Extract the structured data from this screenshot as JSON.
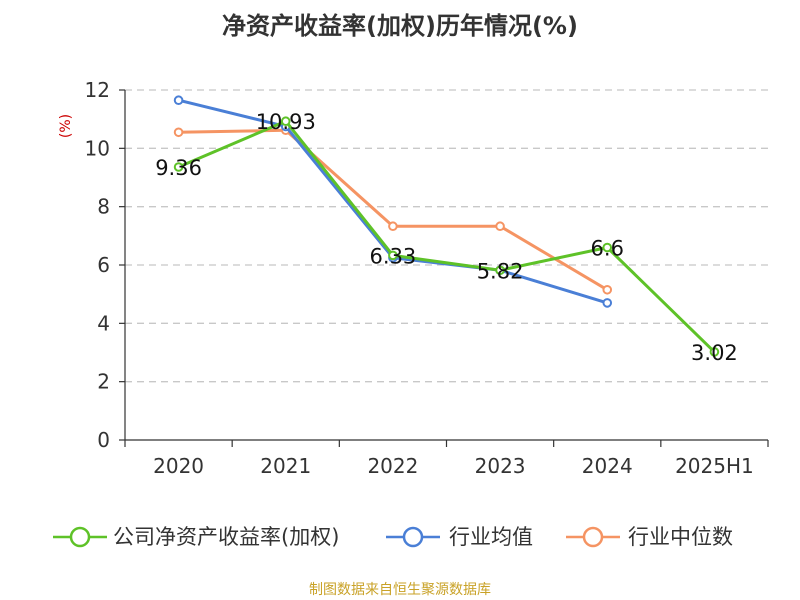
{
  "chart_data": {
    "type": "line",
    "title": "净资产收益率(加权)历年情况(%)",
    "ylabel": "(%)",
    "categories": [
      "2020",
      "2021",
      "2022",
      "2023",
      "2024",
      "2025H1"
    ],
    "ylim": [
      0,
      12
    ],
    "yticks": [
      0,
      2,
      4,
      6,
      8,
      10,
      12
    ],
    "grid": true,
    "legend_position": "bottom",
    "series": [
      {
        "name": "公司净资产收益率(加权)",
        "color": "#5ec228",
        "labeled": true,
        "values": [
          9.36,
          10.93,
          6.33,
          5.82,
          6.6,
          3.02
        ]
      },
      {
        "name": "行业均值",
        "color": "#4a7fd6",
        "labeled": false,
        "values": [
          11.65,
          10.75,
          6.25,
          5.82,
          4.7,
          null
        ]
      },
      {
        "name": "行业中位数",
        "color": "#f59463",
        "labeled": false,
        "values": [
          10.55,
          10.62,
          7.33,
          7.33,
          5.15,
          null
        ]
      }
    ]
  },
  "footer": {
    "source": "制图数据来自恒生聚源数据库"
  }
}
